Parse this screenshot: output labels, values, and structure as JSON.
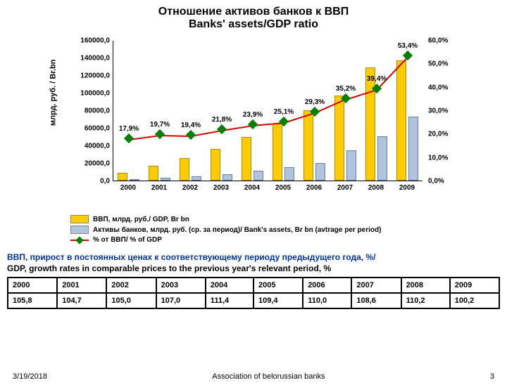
{
  "title_ru": "Отношение активов банков к ВВП",
  "title_en": "Banks' assets/GDP ratio",
  "chart": {
    "type": "bar+line",
    "ylabel_left": "млрд. руб. / Br.bn",
    "categories": [
      "2000",
      "2001",
      "2002",
      "2003",
      "2004",
      "2005",
      "2006",
      "2007",
      "2008",
      "2009"
    ],
    "y_left_ticks": [
      "0,0",
      "20000,0",
      "40000,0",
      "60000,0",
      "80000,0",
      "100000,0",
      "120000,0",
      "140000,0",
      "160000,0"
    ],
    "y_left_max": 160000,
    "y_right_ticks": [
      "0,0%",
      "10,0%",
      "20,0%",
      "30,0%",
      "40,0%",
      "50,0%",
      "60,0%"
    ],
    "y_right_max": 60,
    "gdp_values": [
      9000,
      17000,
      26000,
      36000,
      50000,
      65000,
      80000,
      97000,
      129000,
      137000
    ],
    "assets_values": [
      1600,
      3300,
      5100,
      7000,
      10900,
      15500,
      20100,
      34100,
      50800,
      73200
    ],
    "ratio_values": [
      17.9,
      19.7,
      19.4,
      21.8,
      23.9,
      25.1,
      29.3,
      35.2,
      39.4,
      53.4
    ],
    "ratio_labels": [
      "17,9%",
      "19,7%",
      "19,4%",
      "21,8%",
      "23,9%",
      "25,1%",
      "29,3%",
      "35,2%",
      "39,4%",
      "53,4%"
    ],
    "colors": {
      "gdp": "#ffcc00",
      "assets": "#b0c4de",
      "line": "#d40000",
      "marker": "#008000",
      "bg": "#ffffff"
    },
    "legend": {
      "gdp": "ВВП, млрд. руб./ GDP, Br bn",
      "assets": "Активы банков, млрд. руб. (ср. за период)/ Bank's assets, Br bn (avtrage per period)",
      "ratio": "% от ВВП/ % of GDP"
    }
  },
  "table": {
    "caption_ru": "ВВП, прирост в постоянных ценах к соответствующему периоду предыдущего года, %/",
    "caption_en": "GDP, growth rates in comparable prices to the previous year's relevant period, %",
    "years": [
      "2000",
      "2001",
      "2002",
      "2003",
      "2004",
      "2005",
      "2006",
      "2007",
      "2008",
      "2009"
    ],
    "values": [
      "105,8",
      "104,7",
      "105,0",
      "107,0",
      "111,4",
      "109,4",
      "110,0",
      "108,6",
      "110,2",
      "100,2"
    ]
  },
  "footer": {
    "date": "3/19/2018",
    "org": "Association of belorussian banks",
    "page": "3"
  }
}
